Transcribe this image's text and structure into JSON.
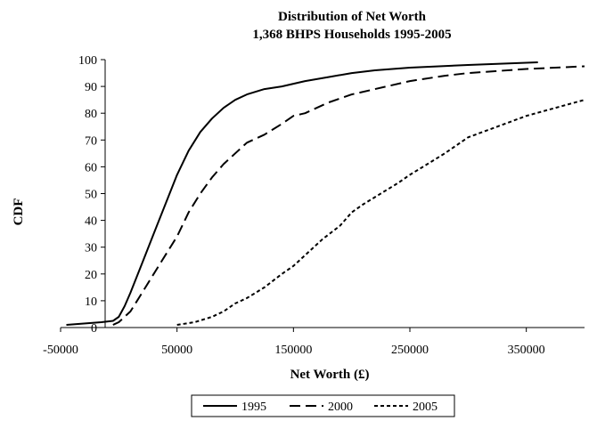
{
  "chart_data": {
    "type": "line",
    "title": "Distribution of Net Worth",
    "subtitle": "1,368 BHPS Households 1995-2005",
    "xlabel": "Net Worth (£)",
    "ylabel": "CDF",
    "xlim": [
      -50000,
      400000
    ],
    "ylim": [
      0,
      100
    ],
    "xticks": [
      -50000,
      50000,
      150000,
      250000,
      350000
    ],
    "xtick_labels": [
      "-50000",
      "50000",
      "150000",
      "250000",
      "350000"
    ],
    "yticks": [
      0,
      10,
      20,
      30,
      40,
      50,
      60,
      70,
      80,
      90,
      100
    ],
    "ytick_labels": [
      "0",
      "10",
      "20",
      "30",
      "40",
      "50",
      "60",
      "70",
      "80",
      "90",
      "100"
    ],
    "grid": false,
    "legend_position": "bottom",
    "series": [
      {
        "name": "1995",
        "color": "#000000",
        "dash": "solid",
        "x": [
          -45000,
          -30000,
          -15000,
          -5000,
          0,
          5000,
          10000,
          20000,
          30000,
          40000,
          50000,
          60000,
          70000,
          80000,
          90000,
          100000,
          110000,
          125000,
          140000,
          150000,
          160000,
          180000,
          200000,
          220000,
          250000,
          300000,
          360000
        ],
        "y": [
          1,
          1.5,
          2,
          2.5,
          4,
          8,
          13,
          24,
          35,
          46,
          57,
          66,
          73,
          78,
          82,
          85,
          87,
          89,
          90,
          91,
          92,
          93.5,
          95,
          96,
          97,
          98,
          99
        ]
      },
      {
        "name": "2000",
        "color": "#000000",
        "dash": "long",
        "x": [
          -5000,
          0,
          10000,
          20000,
          30000,
          40000,
          50000,
          60000,
          70000,
          80000,
          90000,
          100000,
          110000,
          125000,
          140000,
          150000,
          160000,
          180000,
          200000,
          220000,
          250000,
          280000,
          300000,
          350000,
          400000
        ],
        "y": [
          1,
          2,
          6,
          13,
          20,
          27,
          34,
          43,
          50,
          56,
          61,
          65,
          69,
          72,
          76,
          79,
          80,
          84,
          87,
          89,
          92,
          94,
          95,
          96.5,
          97.5
        ]
      },
      {
        "name": "2005",
        "color": "#000000",
        "dash": "short",
        "x": [
          50000,
          65000,
          80000,
          90000,
          100000,
          110000,
          125000,
          140000,
          150000,
          160000,
          175000,
          190000,
          200000,
          210000,
          225000,
          240000,
          250000,
          265000,
          280000,
          300000,
          325000,
          350000,
          375000,
          400000
        ],
        "y": [
          1,
          2,
          4,
          6,
          9,
          11,
          15,
          20,
          23,
          27,
          33,
          38,
          43,
          46,
          50,
          54,
          57,
          61,
          65,
          71,
          75,
          79,
          82,
          85
        ]
      }
    ]
  }
}
